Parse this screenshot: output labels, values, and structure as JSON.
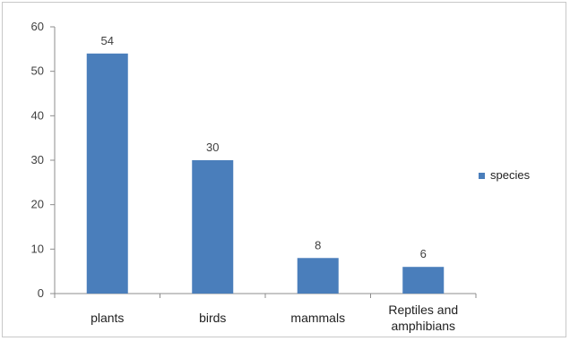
{
  "chart_data": {
    "type": "bar",
    "categories": [
      "plants",
      "birds",
      "mammals",
      "Reptiles and amphibians"
    ],
    "category_lines": [
      [
        "plants"
      ],
      [
        "birds"
      ],
      [
        "mammals"
      ],
      [
        "Reptiles and",
        "amphibians"
      ]
    ],
    "series": [
      {
        "name": "species",
        "values": [
          54,
          30,
          8,
          6
        ]
      }
    ],
    "ylim": [
      0,
      60
    ],
    "yticks": [
      0,
      10,
      20,
      30,
      40,
      50,
      60
    ],
    "data_labels": true,
    "grid": false,
    "legend_position": "right",
    "bar_color": "#4a7ebb"
  }
}
